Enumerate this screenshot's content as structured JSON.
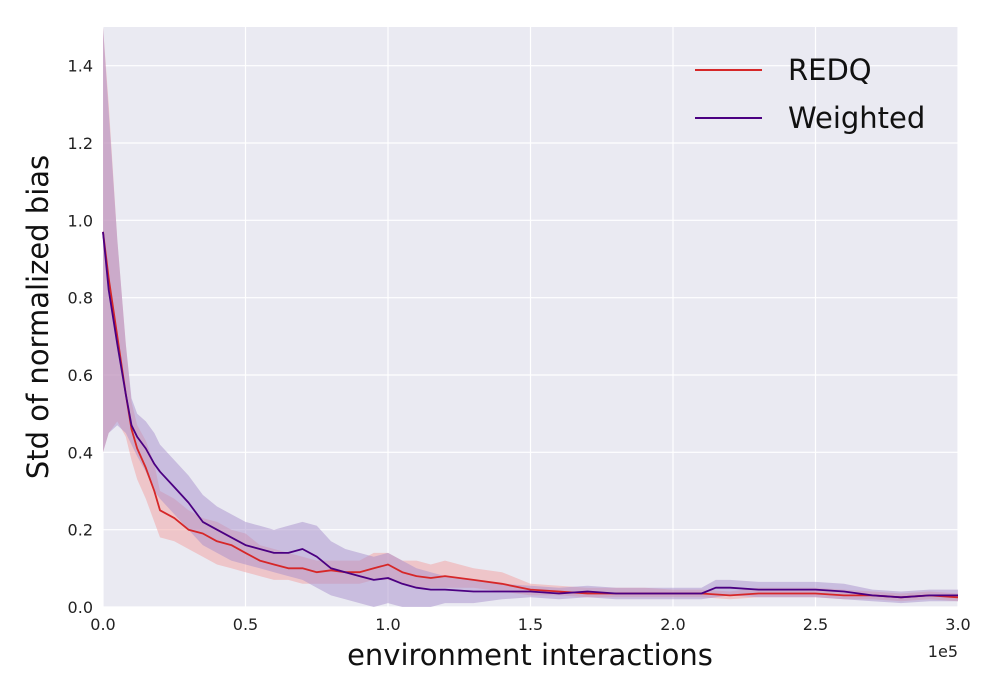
{
  "chart_data": {
    "type": "line",
    "xlabel": "environment interactions",
    "ylabel": "Std of normalized bias",
    "x_scale_label": "1e5",
    "xlim": [
      0,
      3.0
    ],
    "ylim": [
      0,
      1.5
    ],
    "x_ticks": [
      "0.0",
      "0.5",
      "1.0",
      "1.5",
      "2.0",
      "2.5",
      "3.0"
    ],
    "y_ticks": [
      "0.0",
      "0.2",
      "0.4",
      "0.6",
      "0.8",
      "1.0",
      "1.2",
      "1.4"
    ],
    "grid": true,
    "legend_position": "top-right",
    "series": [
      {
        "name": "REDQ",
        "color": "#d62728",
        "band_color": "#f2a0a0",
        "x": [
          0.0,
          0.02,
          0.05,
          0.08,
          0.1,
          0.12,
          0.15,
          0.18,
          0.2,
          0.25,
          0.3,
          0.35,
          0.4,
          0.45,
          0.5,
          0.55,
          0.6,
          0.65,
          0.7,
          0.75,
          0.8,
          0.85,
          0.9,
          0.95,
          1.0,
          1.05,
          1.1,
          1.15,
          1.2,
          1.3,
          1.4,
          1.5,
          1.6,
          1.7,
          1.8,
          1.9,
          2.0,
          2.1,
          2.2,
          2.3,
          2.4,
          2.5,
          2.6,
          2.7,
          2.8,
          2.9,
          3.0
        ],
        "y": [
          0.97,
          0.85,
          0.7,
          0.55,
          0.46,
          0.41,
          0.36,
          0.3,
          0.25,
          0.23,
          0.2,
          0.19,
          0.17,
          0.16,
          0.14,
          0.12,
          0.11,
          0.1,
          0.1,
          0.09,
          0.095,
          0.09,
          0.09,
          0.1,
          0.11,
          0.09,
          0.08,
          0.075,
          0.08,
          0.07,
          0.06,
          0.045,
          0.04,
          0.035,
          0.035,
          0.035,
          0.035,
          0.035,
          0.03,
          0.035,
          0.035,
          0.035,
          0.03,
          0.03,
          0.025,
          0.03,
          0.025
        ],
        "lower": [
          0.4,
          0.45,
          0.48,
          0.44,
          0.38,
          0.33,
          0.28,
          0.22,
          0.18,
          0.17,
          0.15,
          0.13,
          0.11,
          0.1,
          0.09,
          0.08,
          0.07,
          0.07,
          0.06,
          0.06,
          0.06,
          0.06,
          0.06,
          0.07,
          0.07,
          0.06,
          0.05,
          0.05,
          0.05,
          0.05,
          0.04,
          0.03,
          0.03,
          0.025,
          0.025,
          0.025,
          0.025,
          0.025,
          0.02,
          0.025,
          0.025,
          0.025,
          0.02,
          0.02,
          0.015,
          0.02,
          0.015
        ],
        "upper": [
          1.5,
          1.3,
          0.95,
          0.68,
          0.53,
          0.47,
          0.43,
          0.37,
          0.3,
          0.28,
          0.25,
          0.23,
          0.22,
          0.2,
          0.19,
          0.16,
          0.15,
          0.14,
          0.13,
          0.12,
          0.12,
          0.12,
          0.12,
          0.14,
          0.14,
          0.12,
          0.12,
          0.11,
          0.12,
          0.1,
          0.09,
          0.06,
          0.055,
          0.05,
          0.05,
          0.05,
          0.045,
          0.045,
          0.04,
          0.05,
          0.05,
          0.05,
          0.045,
          0.04,
          0.035,
          0.04,
          0.035
        ]
      },
      {
        "name": "Weighted",
        "color": "#4b0082",
        "band_color": "#a890cc",
        "x": [
          0.0,
          0.02,
          0.05,
          0.08,
          0.1,
          0.12,
          0.15,
          0.18,
          0.2,
          0.25,
          0.3,
          0.35,
          0.4,
          0.45,
          0.5,
          0.55,
          0.6,
          0.65,
          0.7,
          0.75,
          0.8,
          0.85,
          0.9,
          0.95,
          1.0,
          1.05,
          1.1,
          1.15,
          1.2,
          1.3,
          1.4,
          1.5,
          1.6,
          1.7,
          1.8,
          1.9,
          2.0,
          2.1,
          2.15,
          2.2,
          2.3,
          2.4,
          2.5,
          2.6,
          2.7,
          2.8,
          2.9,
          3.0
        ],
        "y": [
          0.97,
          0.82,
          0.68,
          0.55,
          0.47,
          0.44,
          0.41,
          0.37,
          0.35,
          0.31,
          0.27,
          0.22,
          0.2,
          0.18,
          0.16,
          0.15,
          0.14,
          0.14,
          0.15,
          0.13,
          0.1,
          0.09,
          0.08,
          0.07,
          0.075,
          0.06,
          0.05,
          0.045,
          0.045,
          0.04,
          0.04,
          0.04,
          0.035,
          0.04,
          0.035,
          0.035,
          0.035,
          0.035,
          0.05,
          0.05,
          0.045,
          0.045,
          0.045,
          0.04,
          0.03,
          0.025,
          0.03,
          0.03
        ],
        "lower": [
          0.4,
          0.45,
          0.47,
          0.45,
          0.42,
          0.39,
          0.35,
          0.3,
          0.28,
          0.24,
          0.2,
          0.16,
          0.14,
          0.12,
          0.11,
          0.1,
          0.09,
          0.08,
          0.07,
          0.05,
          0.03,
          0.02,
          0.01,
          0.0,
          0.01,
          0.0,
          0.0,
          0.0,
          0.01,
          0.01,
          0.02,
          0.025,
          0.02,
          0.025,
          0.02,
          0.02,
          0.02,
          0.02,
          0.025,
          0.03,
          0.025,
          0.025,
          0.025,
          0.02,
          0.015,
          0.01,
          0.015,
          0.015
        ],
        "upper": [
          1.5,
          1.28,
          0.95,
          0.68,
          0.54,
          0.5,
          0.48,
          0.45,
          0.42,
          0.38,
          0.34,
          0.29,
          0.26,
          0.24,
          0.22,
          0.21,
          0.2,
          0.21,
          0.22,
          0.21,
          0.17,
          0.15,
          0.14,
          0.13,
          0.14,
          0.12,
          0.1,
          0.09,
          0.08,
          0.07,
          0.06,
          0.055,
          0.05,
          0.055,
          0.05,
          0.05,
          0.05,
          0.05,
          0.07,
          0.07,
          0.065,
          0.065,
          0.065,
          0.06,
          0.045,
          0.04,
          0.045,
          0.045
        ]
      }
    ]
  }
}
